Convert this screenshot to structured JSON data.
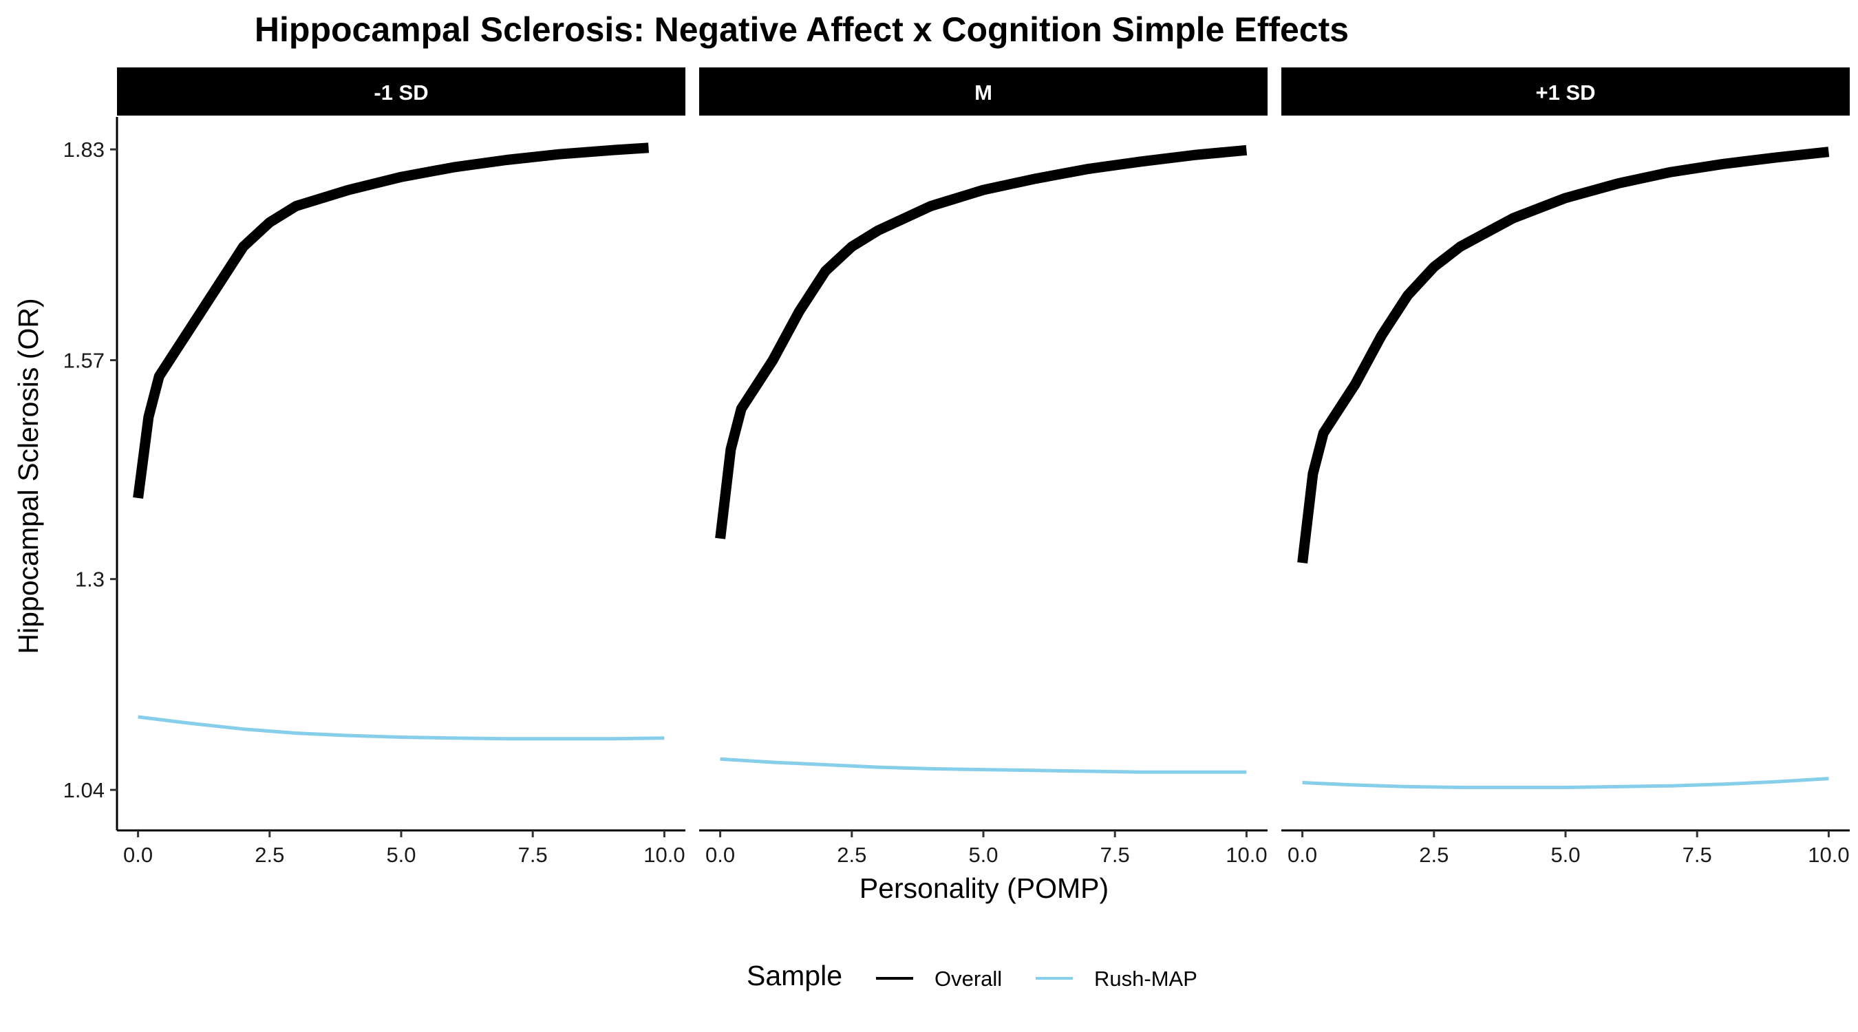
{
  "chart_data": {
    "type": "line",
    "title": "Hippocampal Sclerosis: Negative Affect x Cognition Simple Effects",
    "xlabel": "Personality (POMP)",
    "ylabel": "Hippocampal Sclerosis (OR)",
    "xlim": [
      -0.4,
      10.4
    ],
    "ylim": [
      0.99,
      1.87
    ],
    "x_ticks": [
      0,
      2.5,
      5,
      7.5,
      10
    ],
    "x_tick_labels": [
      "0.0",
      "2.5",
      "5.0",
      "7.5",
      "10.0"
    ],
    "y_ticks": [
      1.04,
      1.3,
      1.57,
      1.83
    ],
    "y_tick_labels": [
      "1.04",
      "1.3",
      "1.57",
      "1.83"
    ],
    "grid": false,
    "legend": {
      "title": "Sample",
      "placement": "bottom",
      "entries": [
        {
          "label": "Overall",
          "color": "#000000"
        },
        {
          "label": "Rush-MAP",
          "color": "#87CEEB"
        }
      ]
    },
    "panels": [
      {
        "label": "-1 SD",
        "series": [
          {
            "name": "Overall",
            "color": "#000000",
            "x": [
              0,
              0.2,
              0.4,
              0.7,
              1.0,
              1.5,
              2.0,
              2.5,
              3.0,
              4.0,
              5.0,
              6.0,
              7.0,
              8.0,
              9.0,
              9.7
            ],
            "y": [
              1.4,
              1.5,
              1.55,
              1.58,
              1.61,
              1.66,
              1.71,
              1.74,
              1.76,
              1.78,
              1.796,
              1.808,
              1.817,
              1.824,
              1.829,
              1.832
            ]
          },
          {
            "name": "Rush-MAP",
            "color": "#87CEEB",
            "x": [
              0,
              1,
              2,
              3,
              4,
              5,
              6,
              7,
              8,
              9,
              10
            ],
            "y": [
              1.13,
              1.122,
              1.115,
              1.11,
              1.107,
              1.105,
              1.104,
              1.103,
              1.103,
              1.103,
              1.104
            ]
          }
        ]
      },
      {
        "label": "M",
        "series": [
          {
            "name": "Overall",
            "color": "#000000",
            "x": [
              0,
              0.2,
              0.4,
              0.7,
              1.0,
              1.5,
              2.0,
              2.5,
              3.0,
              4.0,
              5.0,
              6.0,
              7.0,
              8.0,
              9.0,
              10.0
            ],
            "y": [
              1.35,
              1.46,
              1.51,
              1.54,
              1.57,
              1.63,
              1.68,
              1.71,
              1.73,
              1.76,
              1.78,
              1.794,
              1.806,
              1.815,
              1.823,
              1.829
            ]
          },
          {
            "name": "Rush-MAP",
            "color": "#87CEEB",
            "x": [
              0,
              1,
              2,
              3,
              4,
              5,
              6,
              7,
              8,
              9,
              10
            ],
            "y": [
              1.078,
              1.074,
              1.071,
              1.068,
              1.066,
              1.065,
              1.064,
              1.063,
              1.062,
              1.062,
              1.062
            ]
          }
        ]
      },
      {
        "label": "+1 SD",
        "series": [
          {
            "name": "Overall",
            "color": "#000000",
            "x": [
              0,
              0.2,
              0.4,
              0.7,
              1.0,
              1.5,
              2.0,
              2.5,
              3.0,
              4.0,
              5.0,
              6.0,
              7.0,
              8.0,
              9.0,
              10.0
            ],
            "y": [
              1.32,
              1.43,
              1.48,
              1.51,
              1.54,
              1.6,
              1.65,
              1.685,
              1.71,
              1.745,
              1.77,
              1.788,
              1.802,
              1.812,
              1.82,
              1.827
            ]
          },
          {
            "name": "Rush-MAP",
            "color": "#87CEEB",
            "x": [
              0,
              1,
              2,
              3,
              4,
              5,
              6,
              7,
              8,
              9,
              10
            ],
            "y": [
              1.049,
              1.046,
              1.044,
              1.043,
              1.043,
              1.043,
              1.044,
              1.045,
              1.047,
              1.05,
              1.054
            ]
          }
        ]
      }
    ]
  }
}
